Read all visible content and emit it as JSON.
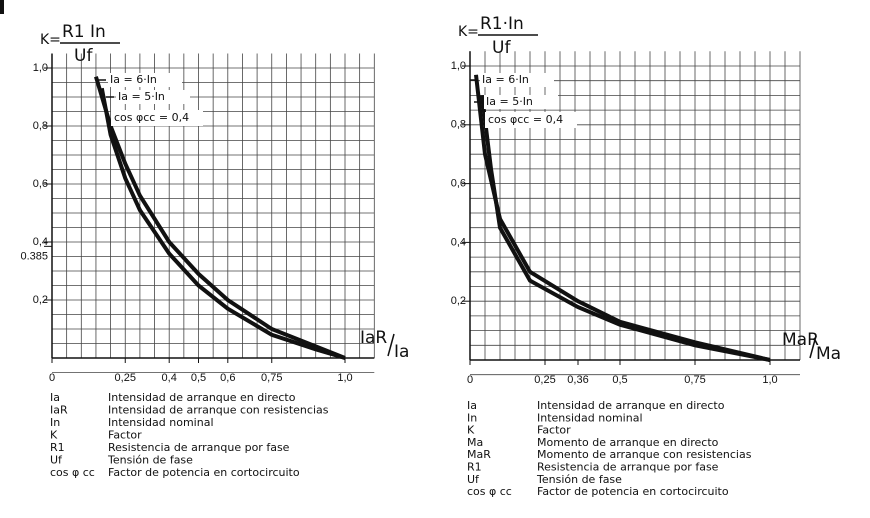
{
  "chart_data": [
    {
      "type": "line",
      "formula_prefix": "K=",
      "formula_numerator": "R1 In",
      "formula_denominator": "Uf",
      "x_label_numerator": "IaR",
      "x_label_denominator": "Ia",
      "note": "cos φcc = 0,4",
      "xlim": [
        0,
        1.0
      ],
      "ylim": [
        0,
        1.0
      ],
      "xticks": [
        0,
        {
          "value": 0.25,
          "label": "0,25"
        },
        {
          "value": 0.4,
          "label": "0,4"
        },
        {
          "value": 0.5,
          "label": "0,5"
        },
        {
          "value": 0.6,
          "label": "0,6"
        },
        {
          "value": 0.75,
          "label": "0,75"
        },
        {
          "value": 1.0,
          "label": "1,0"
        }
      ],
      "yticks": [
        {
          "value": 0.2,
          "label": "0,2"
        },
        0.385,
        {
          "value": 0.4,
          "label": "0,4"
        },
        {
          "value": 0.6,
          "label": "0,6"
        },
        {
          "value": 0.8,
          "label": "0,8"
        },
        {
          "value": 1.0,
          "label": "1,0"
        }
      ],
      "grid": true,
      "series": [
        {
          "name": "Ia = 6·In",
          "color": "#111111",
          "x": [
            0.15,
            0.2,
            0.25,
            0.3,
            0.4,
            0.5,
            0.6,
            0.75,
            0.9,
            1.0
          ],
          "values": [
            0.97,
            0.8,
            0.67,
            0.56,
            0.4,
            0.29,
            0.2,
            0.1,
            0.04,
            0
          ]
        },
        {
          "name": "Ia = 5·In",
          "color": "#111111",
          "x": [
            0.17,
            0.2,
            0.25,
            0.3,
            0.4,
            0.5,
            0.6,
            0.75,
            0.9,
            1.0
          ],
          "values": [
            0.93,
            0.77,
            0.62,
            0.51,
            0.36,
            0.25,
            0.17,
            0.08,
            0.03,
            0
          ]
        }
      ],
      "glossary": [
        {
          "symbol": "Ia",
          "text": "Intensidad de arranque en directo"
        },
        {
          "symbol": "IaR",
          "text": "Intensidad de arranque con resistencias"
        },
        {
          "symbol": "In",
          "text": "Intensidad nominal"
        },
        {
          "symbol": "K",
          "text": "Factor"
        },
        {
          "symbol": "R1",
          "text": "Resistencia de arranque por fase"
        },
        {
          "symbol": "Uf",
          "text": "Tensión de fase"
        },
        {
          "symbol": "cos φ cc",
          "text": "Factor de potencia en cortocircuito"
        }
      ]
    },
    {
      "type": "line",
      "formula_prefix": "K=",
      "formula_numerator": "R1·In",
      "formula_denominator": "Uf",
      "x_label_numerator": "MaR",
      "x_label_denominator": "Ma",
      "note": "cos φcc = 0,4",
      "xlim": [
        0,
        1.0
      ],
      "ylim": [
        0,
        1.0
      ],
      "xticks": [
        0,
        {
          "value": 0.25,
          "label": "0,25"
        },
        {
          "value": 0.36,
          "label": "0,36"
        },
        {
          "value": 0.5,
          "label": "0,5"
        },
        {
          "value": 0.75,
          "label": "0,75"
        },
        {
          "value": 1.0,
          "label": "1,0"
        }
      ],
      "yticks": [
        {
          "value": 0.2,
          "label": "0,2"
        },
        {
          "value": 0.4,
          "label": "0,4"
        },
        {
          "value": 0.6,
          "label": "0,6"
        },
        {
          "value": 0.8,
          "label": "0,8"
        },
        {
          "value": 1.0,
          "label": "1,0"
        }
      ],
      "grid": true,
      "series": [
        {
          "name": "Ia = 6·In",
          "color": "#111111",
          "x": [
            0.02,
            0.05,
            0.1,
            0.2,
            0.36,
            0.5,
            0.75,
            1.0
          ],
          "values": [
            0.97,
            0.7,
            0.48,
            0.3,
            0.2,
            0.13,
            0.06,
            0
          ]
        },
        {
          "name": "Ia = 5·In",
          "color": "#111111",
          "x": [
            0.04,
            0.07,
            0.1,
            0.2,
            0.36,
            0.5,
            0.75,
            1.0
          ],
          "values": [
            0.9,
            0.65,
            0.45,
            0.27,
            0.18,
            0.12,
            0.05,
            0
          ]
        }
      ],
      "glossary": [
        {
          "symbol": "Ia",
          "text": "Intensidad de arranque en directo"
        },
        {
          "symbol": "In",
          "text": "Intensidad nominal"
        },
        {
          "symbol": "K",
          "text": "Factor"
        },
        {
          "symbol": "Ma",
          "text": "Momento de arranque en directo"
        },
        {
          "symbol": "MaR",
          "text": "Momento de arranque con resistencias"
        },
        {
          "symbol": "R1",
          "text": "Resistencia de arranque por fase"
        },
        {
          "symbol": "Uf",
          "text": "Tensión de fase"
        },
        {
          "symbol": "cos φ cc",
          "text": "Factor de potencia en cortocircuito"
        }
      ]
    }
  ]
}
